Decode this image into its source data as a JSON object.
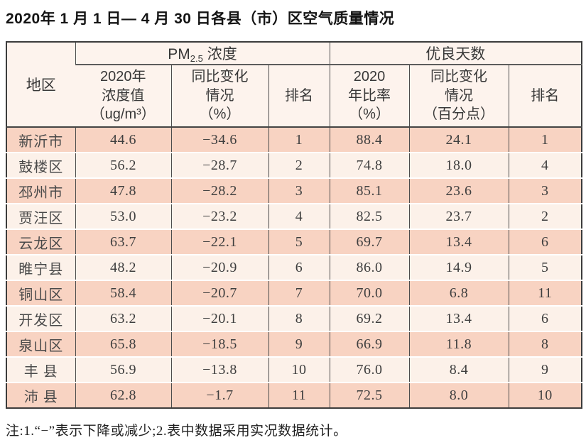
{
  "title": "2020年 1 月 1 日— 4 月 30 日各县（市）区空气质量情况",
  "colors": {
    "row_dark": "#f8d3c2",
    "row_light": "#fcf1e9",
    "header_bg": "#fdf3ed",
    "border_dark": "#3c3c3c",
    "grid_line": "#4c4c4c",
    "text_main": "#3f3f3f"
  },
  "table": {
    "region_header": "地区",
    "pm_group": {
      "prefix": "PM",
      "sub": "2.5",
      "suffix": " 浓度"
    },
    "good_group": "优良天数",
    "sub_headers": {
      "pm_value": "2020年\n浓度值\n（ug/m³）",
      "pm_change": "同比变化\n情况\n（%）",
      "pm_rank": "排名",
      "good_ratio": "2020\n年比率\n（%）",
      "good_change": "同比变化\n情况\n（百分点）",
      "good_rank": "排名"
    }
  },
  "rows": [
    {
      "region": "新沂市",
      "pm_value": "44.6",
      "pm_change": "−34.6",
      "pm_rank": "1",
      "good_ratio": "88.4",
      "good_change": "24.1",
      "good_rank": "1"
    },
    {
      "region": "鼓楼区",
      "pm_value": "56.2",
      "pm_change": "−28.7",
      "pm_rank": "2",
      "good_ratio": "74.8",
      "good_change": "18.0",
      "good_rank": "4"
    },
    {
      "region": "邳州市",
      "pm_value": "47.8",
      "pm_change": "−28.2",
      "pm_rank": "3",
      "good_ratio": "85.1",
      "good_change": "23.6",
      "good_rank": "3"
    },
    {
      "region": "贾汪区",
      "pm_value": "53.0",
      "pm_change": "−23.2",
      "pm_rank": "4",
      "good_ratio": "82.5",
      "good_change": "23.7",
      "good_rank": "2"
    },
    {
      "region": "云龙区",
      "pm_value": "63.7",
      "pm_change": "−22.1",
      "pm_rank": "5",
      "good_ratio": "69.7",
      "good_change": "13.4",
      "good_rank": "6"
    },
    {
      "region": "睢宁县",
      "pm_value": "48.2",
      "pm_change": "−20.9",
      "pm_rank": "6",
      "good_ratio": "86.0",
      "good_change": "14.9",
      "good_rank": "5"
    },
    {
      "region": "铜山区",
      "pm_value": "58.4",
      "pm_change": "−20.7",
      "pm_rank": "7",
      "good_ratio": "70.0",
      "good_change": "6.8",
      "good_rank": "11"
    },
    {
      "region": "开发区",
      "pm_value": "63.2",
      "pm_change": "−20.1",
      "pm_rank": "8",
      "good_ratio": "69.2",
      "good_change": "13.4",
      "good_rank": "6"
    },
    {
      "region": "泉山区",
      "pm_value": "65.8",
      "pm_change": "−18.5",
      "pm_rank": "9",
      "good_ratio": "66.9",
      "good_change": "11.8",
      "good_rank": "8"
    },
    {
      "region": "丰 县",
      "pm_value": "56.9",
      "pm_change": "−13.8",
      "pm_rank": "10",
      "good_ratio": "76.0",
      "good_change": "8.4",
      "good_rank": "9"
    },
    {
      "region": "沛 县",
      "pm_value": "62.8",
      "pm_change": "−1.7",
      "pm_rank": "11",
      "good_ratio": "72.5",
      "good_change": "8.0",
      "good_rank": "10"
    }
  ],
  "note": "注:1.“−”表示下降或减少;2.表中数据采用实况数据统计。"
}
